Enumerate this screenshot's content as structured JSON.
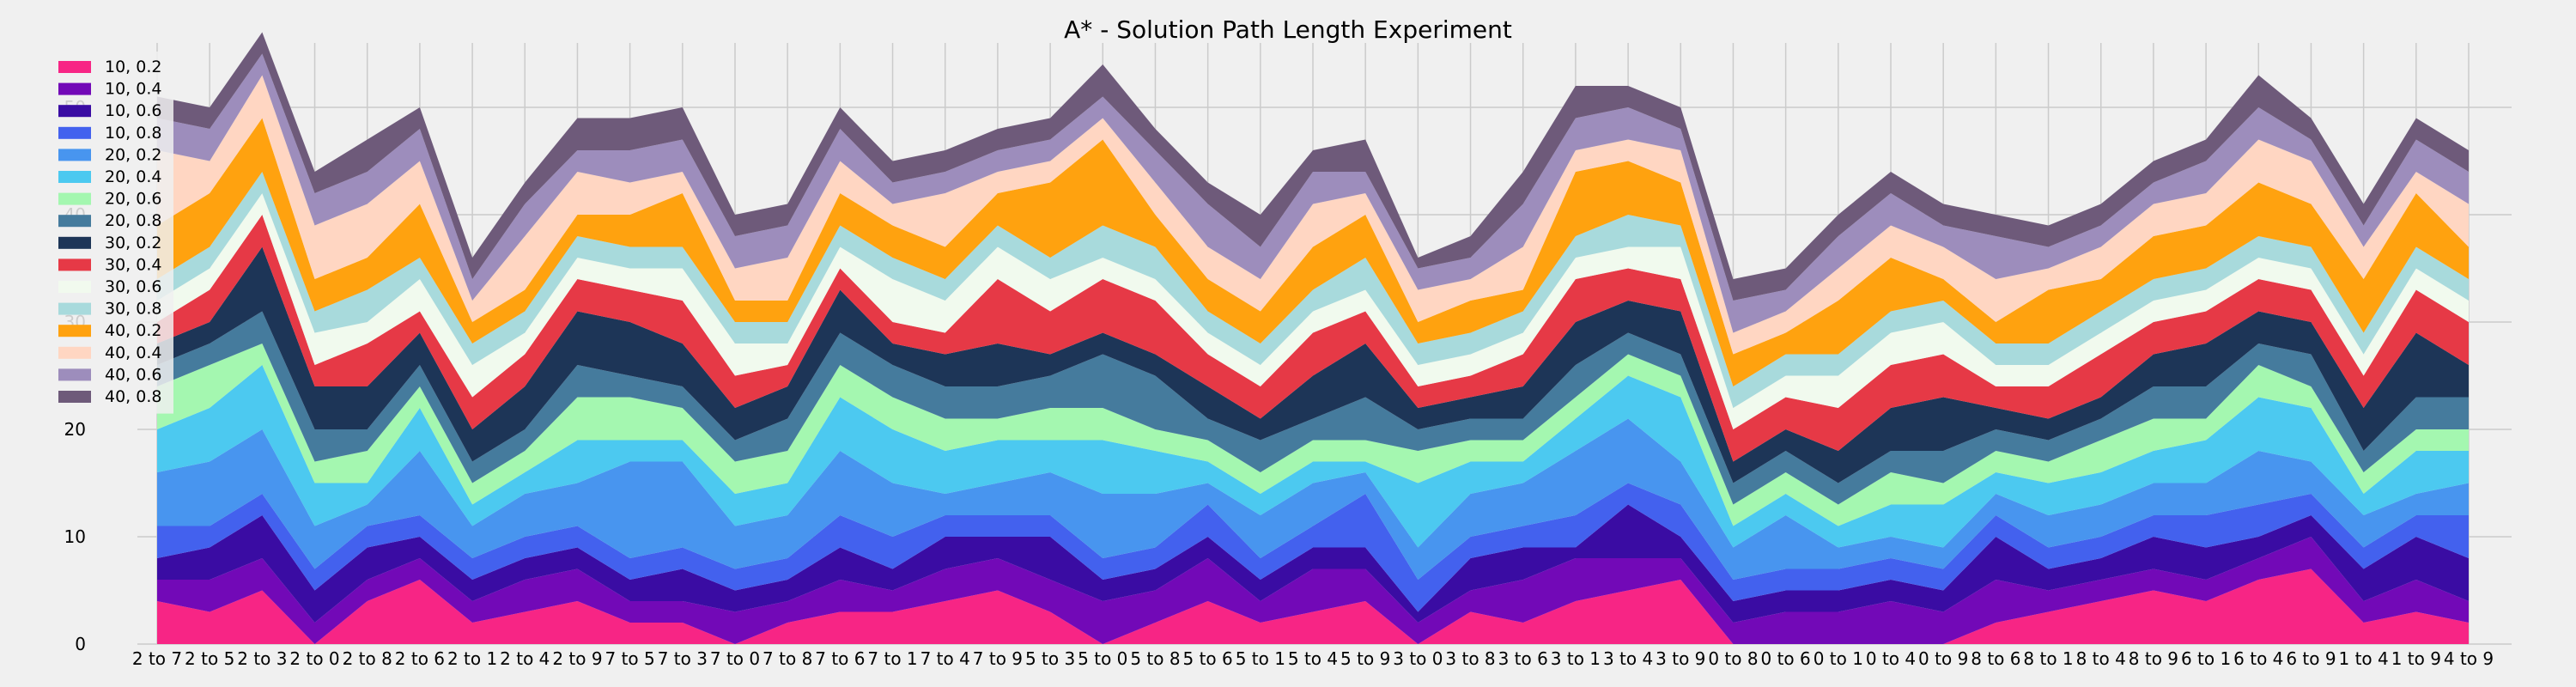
{
  "chart_data": {
    "type": "area",
    "stacked": true,
    "title": "A* - Solution Path Length Experiment",
    "xlabel": "",
    "ylabel": "",
    "ylim": [
      0,
      56
    ],
    "yticks": [
      0,
      10,
      20,
      30,
      40,
      50
    ],
    "grid": true,
    "legend_position": "top-left",
    "categories": [
      "2 to 7",
      "2 to 5",
      "2 to 3",
      "2 to 0",
      "2 to 8",
      "2 to 6",
      "2 to 1",
      "2 to 4",
      "2 to 9",
      "7 to 5",
      "7 to 3",
      "7 to 0",
      "7 to 8",
      "7 to 6",
      "7 to 1",
      "7 to 4",
      "7 to 9",
      "5 to 3",
      "5 to 0",
      "5 to 8",
      "5 to 6",
      "5 to 1",
      "5 to 4",
      "5 to 9",
      "3 to 0",
      "3 to 8",
      "3 to 6",
      "3 to 1",
      "3 to 4",
      "3 to 9",
      "0 to 8",
      "0 to 6",
      "0 to 1",
      "0 to 4",
      "0 to 9",
      "8 to 6",
      "8 to 1",
      "8 to 4",
      "8 to 9",
      "6 to 1",
      "6 to 4",
      "6 to 9",
      "1 to 4",
      "1 to 9",
      "4 to 9"
    ],
    "series": [
      {
        "name": "10, 0.2",
        "color": "#f72585",
        "values": [
          4,
          3,
          5,
          0,
          4,
          6,
          2,
          3,
          4,
          2,
          2,
          0,
          2,
          3,
          3,
          4,
          5,
          3,
          0,
          2,
          4,
          2,
          3,
          4,
          0,
          3,
          2,
          4,
          5,
          6,
          0,
          0,
          0,
          0,
          0,
          2,
          3,
          4,
          5,
          4,
          6,
          7,
          2,
          3,
          2
        ]
      },
      {
        "name": "10, 0.4",
        "color": "#7209b7",
        "values": [
          2,
          3,
          3,
          2,
          2,
          2,
          2,
          3,
          3,
          2,
          2,
          3,
          2,
          3,
          2,
          3,
          3,
          3,
          4,
          3,
          4,
          2,
          4,
          3,
          2,
          2,
          4,
          4,
          3,
          2,
          2,
          3,
          3,
          4,
          3,
          4,
          2,
          2,
          2,
          2,
          2,
          3,
          2,
          3,
          2
        ]
      },
      {
        "name": "10, 0.6",
        "color": "#3a0ca3",
        "values": [
          2,
          3,
          4,
          3,
          3,
          2,
          2,
          2,
          2,
          2,
          3,
          2,
          2,
          3,
          2,
          3,
          2,
          4,
          2,
          2,
          2,
          2,
          2,
          2,
          1,
          3,
          3,
          1,
          5,
          2,
          2,
          2,
          2,
          2,
          2,
          4,
          2,
          2,
          3,
          3,
          2,
          2,
          3,
          4,
          4
        ]
      },
      {
        "name": "10, 0.8",
        "color": "#4361ee",
        "values": [
          3,
          2,
          2,
          2,
          2,
          2,
          2,
          2,
          2,
          2,
          2,
          2,
          2,
          3,
          3,
          2,
          2,
          2,
          2,
          2,
          3,
          2,
          2,
          5,
          3,
          2,
          2,
          3,
          2,
          3,
          2,
          2,
          2,
          2,
          2,
          2,
          2,
          2,
          2,
          3,
          3,
          2,
          2,
          2,
          4
        ]
      },
      {
        "name": "20, 0.2",
        "color": "#4895ef",
        "values": [
          5,
          6,
          6,
          4,
          2,
          6,
          3,
          4,
          4,
          9,
          8,
          4,
          4,
          6,
          5,
          2,
          3,
          4,
          6,
          5,
          2,
          4,
          4,
          2,
          3,
          4,
          4,
          6,
          6,
          4,
          3,
          5,
          2,
          2,
          2,
          2,
          3,
          3,
          3,
          3,
          5,
          3,
          3,
          2,
          3
        ]
      },
      {
        "name": "20, 0.4",
        "color": "#4cc9f0",
        "values": [
          4,
          5,
          6,
          4,
          2,
          4,
          2,
          2,
          4,
          2,
          2,
          3,
          3,
          5,
          5,
          4,
          4,
          3,
          5,
          4,
          2,
          2,
          2,
          1,
          6,
          3,
          2,
          3,
          4,
          6,
          2,
          2,
          2,
          3,
          4,
          2,
          3,
          3,
          3,
          4,
          5,
          5,
          2,
          4,
          3
        ]
      },
      {
        "name": "20, 0.6",
        "color": "#a4f7b0",
        "values": [
          4,
          4,
          2,
          2,
          3,
          2,
          2,
          2,
          4,
          4,
          3,
          3,
          3,
          3,
          3,
          3,
          2,
          3,
          3,
          2,
          2,
          2,
          2,
          2,
          3,
          2,
          2,
          2,
          2,
          2,
          2,
          2,
          2,
          3,
          2,
          2,
          2,
          3,
          3,
          2,
          3,
          2,
          2,
          2,
          2
        ]
      },
      {
        "name": "20, 0.8",
        "color": "#457b9d",
        "values": [
          2,
          2,
          3,
          3,
          2,
          2,
          2,
          2,
          3,
          2,
          2,
          2,
          3,
          3,
          3,
          3,
          3,
          3,
          5,
          5,
          2,
          3,
          2,
          4,
          2,
          2,
          2,
          3,
          2,
          2,
          2,
          2,
          2,
          2,
          3,
          2,
          2,
          2,
          3,
          3,
          2,
          3,
          2,
          3,
          3
        ]
      },
      {
        "name": "30, 0.2",
        "color": "#1d3557",
        "values": [
          2,
          2,
          6,
          4,
          4,
          3,
          3,
          4,
          5,
          5,
          4,
          3,
          3,
          4,
          2,
          3,
          4,
          2,
          2,
          2,
          3,
          2,
          4,
          5,
          2,
          2,
          3,
          4,
          3,
          4,
          2,
          2,
          3,
          4,
          5,
          2,
          2,
          2,
          3,
          4,
          3,
          3,
          4,
          6,
          3
        ]
      },
      {
        "name": "30, 0.4",
        "color": "#e63946",
        "values": [
          2,
          3,
          3,
          2,
          4,
          2,
          3,
          3,
          3,
          3,
          4,
          3,
          2,
          2,
          2,
          2,
          6,
          4,
          5,
          5,
          3,
          3,
          4,
          3,
          2,
          2,
          3,
          4,
          3,
          3,
          3,
          3,
          4,
          4,
          4,
          2,
          3,
          4,
          3,
          3,
          3,
          3,
          3,
          4,
          4
        ]
      },
      {
        "name": "30, 0.6",
        "color": "#f1faee",
        "values": [
          2,
          2,
          2,
          3,
          2,
          3,
          3,
          2,
          2,
          2,
          3,
          3,
          2,
          2,
          4,
          3,
          3,
          3,
          2,
          2,
          2,
          2,
          2,
          2,
          2,
          2,
          2,
          2,
          2,
          3,
          2,
          2,
          3,
          3,
          3,
          2,
          2,
          2,
          2,
          2,
          2,
          2,
          2,
          2,
          2
        ]
      },
      {
        "name": "30, 0.8",
        "color": "#a8dadc",
        "values": [
          2,
          2,
          2,
          2,
          3,
          2,
          2,
          2,
          2,
          2,
          2,
          2,
          2,
          2,
          2,
          2,
          2,
          2,
          3,
          3,
          2,
          2,
          2,
          3,
          2,
          2,
          2,
          2,
          3,
          2,
          2,
          2,
          2,
          2,
          2,
          2,
          2,
          2,
          2,
          2,
          2,
          2,
          2,
          2,
          2
        ]
      },
      {
        "name": "40, 0.2",
        "color": "#ffa20f",
        "values": [
          5,
          5,
          5,
          3,
          3,
          5,
          2,
          2,
          2,
          3,
          5,
          2,
          2,
          3,
          3,
          3,
          3,
          7,
          8,
          3,
          3,
          3,
          4,
          4,
          2,
          3,
          2,
          6,
          5,
          4,
          3,
          2,
          5,
          5,
          2,
          2,
          5,
          3,
          4,
          4,
          5,
          4,
          5,
          5,
          3
        ]
      },
      {
        "name": "40, 0.4",
        "color": "#ffd6c2",
        "values": [
          7,
          3,
          4,
          5,
          5,
          4,
          2,
          5,
          4,
          3,
          2,
          3,
          4,
          3,
          2,
          5,
          2,
          2,
          2,
          3,
          3,
          3,
          4,
          2,
          3,
          2,
          4,
          2,
          2,
          3,
          2,
          2,
          3,
          3,
          3,
          4,
          2,
          3,
          3,
          3,
          4,
          4,
          3,
          2,
          4
        ]
      },
      {
        "name": "40, 0.6",
        "color": "#9d8dbc",
        "values": [
          3,
          3,
          2,
          3,
          3,
          3,
          2,
          3,
          2,
          3,
          3,
          3,
          3,
          3,
          2,
          2,
          2,
          2,
          2,
          3,
          4,
          3,
          3,
          2,
          2,
          2,
          4,
          3,
          3,
          2,
          3,
          2,
          3,
          3,
          2,
          4,
          2,
          2,
          2,
          3,
          3,
          2,
          2,
          3,
          3
        ]
      },
      {
        "name": "40, 0.8",
        "color": "#6e5a7a",
        "values": [
          2,
          2,
          2,
          2,
          3,
          2,
          2,
          2,
          3,
          3,
          3,
          2,
          2,
          2,
          2,
          2,
          2,
          2,
          3,
          2,
          2,
          3,
          2,
          3,
          1,
          2,
          3,
          3,
          2,
          2,
          2,
          2,
          2,
          2,
          2,
          2,
          2,
          2,
          2,
          2,
          3,
          2,
          2,
          2,
          2
        ]
      }
    ]
  }
}
